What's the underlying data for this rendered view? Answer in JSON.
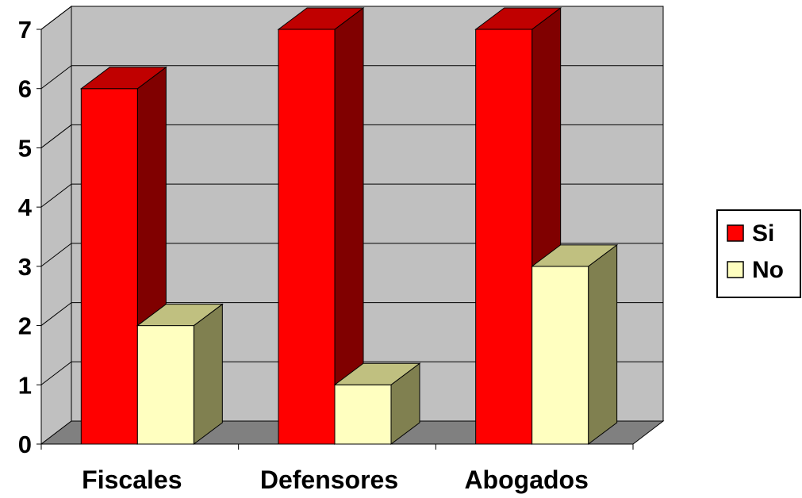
{
  "chart_data": {
    "type": "bar",
    "style": "3d-clustered",
    "title": "",
    "xlabel": "",
    "ylabel": "",
    "categories": [
      "Fiscales",
      "Defensores",
      "Abogados"
    ],
    "series": [
      {
        "name": "Si",
        "values": [
          6,
          7,
          7
        ],
        "color": "#ff0000",
        "side_color": "#800000",
        "top_color": "#c00000"
      },
      {
        "name": "No",
        "values": [
          2,
          1,
          3
        ],
        "color": "#ffffc0",
        "side_color": "#808050",
        "top_color": "#c0c080"
      }
    ],
    "ylim": [
      0,
      7
    ],
    "yticks": [
      "0",
      "1",
      "2",
      "3",
      "4",
      "5",
      "6",
      "7"
    ],
    "grid": true,
    "wall_color": "#c0c0c0",
    "floor_color": "#808080",
    "legend_position": "right"
  }
}
